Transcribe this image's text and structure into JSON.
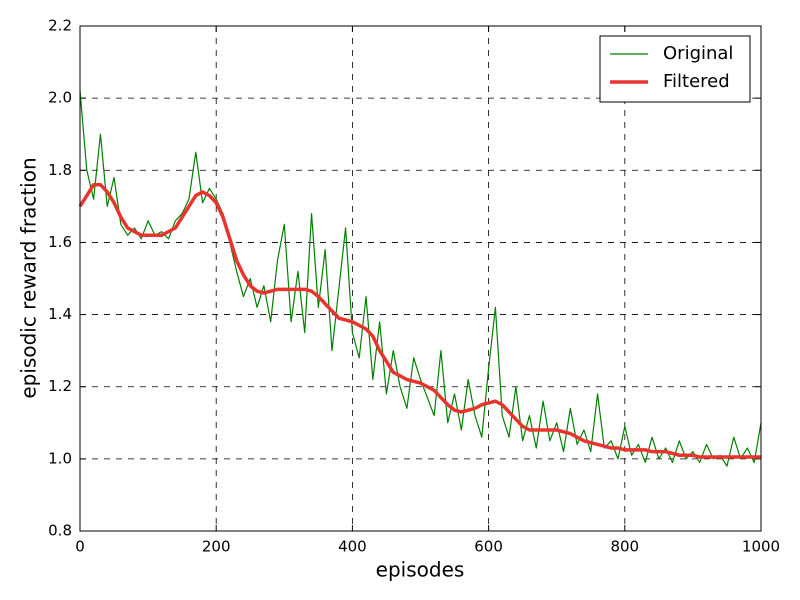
{
  "chart_data": {
    "type": "line",
    "xlabel": "episodes",
    "ylabel": "episodic reward fraction",
    "x": [
      0,
      10,
      20,
      30,
      40,
      50,
      60,
      70,
      80,
      90,
      100,
      110,
      120,
      130,
      140,
      150,
      160,
      170,
      180,
      190,
      200,
      210,
      220,
      230,
      240,
      250,
      260,
      270,
      280,
      290,
      300,
      310,
      320,
      330,
      340,
      350,
      360,
      370,
      380,
      390,
      400,
      410,
      420,
      430,
      440,
      450,
      460,
      470,
      480,
      490,
      500,
      510,
      520,
      530,
      540,
      550,
      560,
      570,
      580,
      590,
      600,
      610,
      620,
      630,
      640,
      650,
      660,
      670,
      680,
      690,
      700,
      710,
      720,
      730,
      740,
      750,
      760,
      770,
      780,
      790,
      800,
      810,
      820,
      830,
      840,
      850,
      860,
      870,
      880,
      890,
      900,
      910,
      920,
      930,
      940,
      950,
      960,
      970,
      980,
      990,
      1000
    ],
    "series": [
      {
        "name": "Original",
        "color": "#008000",
        "width": 1.2,
        "values": [
          2.02,
          1.8,
          1.72,
          1.9,
          1.7,
          1.78,
          1.65,
          1.62,
          1.64,
          1.61,
          1.66,
          1.62,
          1.63,
          1.61,
          1.66,
          1.68,
          1.72,
          1.85,
          1.71,
          1.75,
          1.72,
          1.68,
          1.6,
          1.52,
          1.45,
          1.5,
          1.42,
          1.48,
          1.38,
          1.55,
          1.65,
          1.38,
          1.52,
          1.35,
          1.68,
          1.42,
          1.58,
          1.3,
          1.47,
          1.64,
          1.35,
          1.28,
          1.45,
          1.22,
          1.38,
          1.18,
          1.3,
          1.2,
          1.14,
          1.28,
          1.22,
          1.17,
          1.12,
          1.3,
          1.1,
          1.18,
          1.08,
          1.22,
          1.12,
          1.06,
          1.25,
          1.42,
          1.12,
          1.06,
          1.2,
          1.05,
          1.12,
          1.03,
          1.16,
          1.05,
          1.1,
          1.02,
          1.14,
          1.04,
          1.08,
          1.02,
          1.18,
          1.03,
          1.05,
          1.0,
          1.09,
          1.01,
          1.04,
          0.99,
          1.06,
          1.0,
          1.03,
          0.99,
          1.05,
          1.0,
          1.02,
          0.99,
          1.04,
          1.0,
          1.01,
          0.98,
          1.06,
          1.0,
          1.03,
          0.99,
          1.1
        ]
      },
      {
        "name": "Filtered",
        "color": "#e8332e",
        "width": 3.5,
        "values": [
          1.7,
          1.73,
          1.76,
          1.76,
          1.74,
          1.71,
          1.67,
          1.64,
          1.63,
          1.62,
          1.62,
          1.62,
          1.62,
          1.63,
          1.64,
          1.67,
          1.7,
          1.73,
          1.74,
          1.73,
          1.71,
          1.67,
          1.61,
          1.55,
          1.51,
          1.48,
          1.465,
          1.46,
          1.465,
          1.47,
          1.47,
          1.47,
          1.47,
          1.47,
          1.465,
          1.45,
          1.43,
          1.41,
          1.39,
          1.385,
          1.38,
          1.37,
          1.36,
          1.34,
          1.3,
          1.27,
          1.24,
          1.23,
          1.22,
          1.215,
          1.21,
          1.2,
          1.19,
          1.17,
          1.15,
          1.135,
          1.13,
          1.135,
          1.14,
          1.15,
          1.155,
          1.16,
          1.15,
          1.13,
          1.11,
          1.09,
          1.08,
          1.08,
          1.08,
          1.08,
          1.08,
          1.075,
          1.07,
          1.06,
          1.05,
          1.045,
          1.04,
          1.035,
          1.03,
          1.03,
          1.025,
          1.025,
          1.025,
          1.025,
          1.02,
          1.02,
          1.02,
          1.015,
          1.01,
          1.01,
          1.01,
          1.005,
          1.005,
          1.005,
          1.005,
          1.005,
          1.005,
          1.005,
          1.005,
          1.005,
          1.005
        ]
      }
    ],
    "xlim": [
      0,
      1000
    ],
    "xticks": [
      0,
      200,
      400,
      600,
      800,
      1000
    ],
    "ylim": [
      0.8,
      2.2
    ],
    "yticks": [
      0.8,
      {
        "value": 1.0,
        "label": "1.0"
      },
      1.2,
      1.4,
      1.6,
      1.8,
      {
        "value": 2.0,
        "label": "2.0"
      },
      2.2
    ],
    "grid": true,
    "legend": "upper right"
  }
}
